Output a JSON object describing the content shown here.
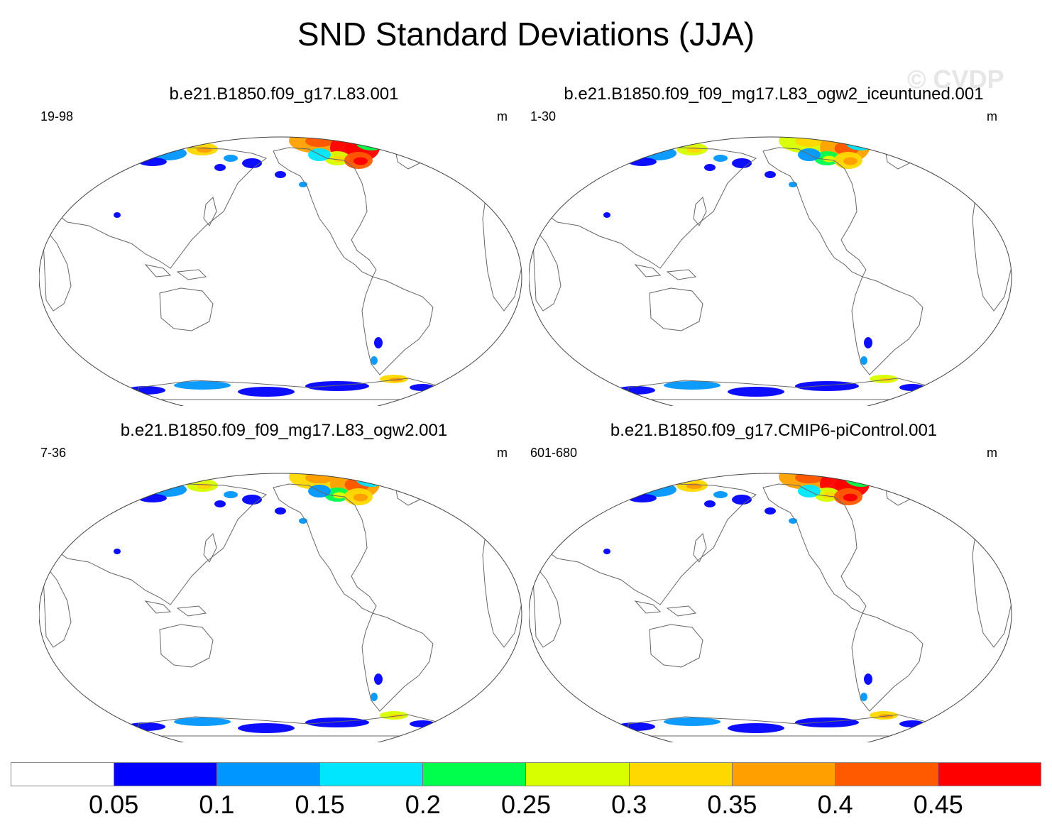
{
  "title": "SND Standard Deviations (JJA)",
  "watermark": "© CVDP",
  "panels": [
    {
      "title": "b.e21.B1850.f09_g17.L83.001",
      "range": "19-98",
      "unit": "m",
      "intensity": 1.0
    },
    {
      "title": "b.e21.B1850.f09_f09_mg17.L83_ogw2_iceuntuned.001",
      "range": "1-30",
      "unit": "m",
      "intensity": 0.75
    },
    {
      "title": "b.e21.B1850.f09_f09_mg17.L83_ogw2.001",
      "range": "7-36",
      "unit": "m",
      "intensity": 0.8
    },
    {
      "title": "b.e21.B1850.f09_g17.CMIP6-piControl.001",
      "range": "601-680",
      "unit": "m",
      "intensity": 0.95
    }
  ],
  "colorbar": {
    "colors": [
      "#ffffff",
      "#0000ff",
      "#0096ff",
      "#00e6ff",
      "#00ff4c",
      "#d8ff00",
      "#ffd800",
      "#ffa000",
      "#ff5a00",
      "#ff0000"
    ],
    "labels": [
      "0.05",
      "0.1",
      "0.15",
      "0.2",
      "0.25",
      "0.3",
      "0.35",
      "0.4",
      "0.45"
    ]
  }
}
